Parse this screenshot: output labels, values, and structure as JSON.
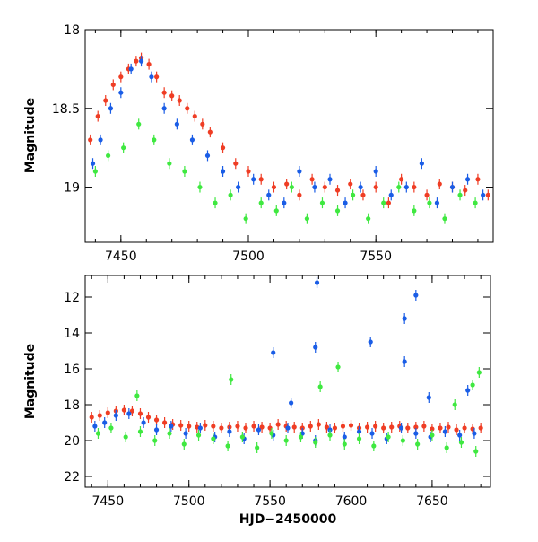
{
  "chart_data": [
    {
      "type": "scatter",
      "panel": "top",
      "xlabel": "",
      "ylabel": "Magnitude",
      "xlim": [
        7436,
        7596
      ],
      "ylim": [
        19.35,
        18.0
      ],
      "y_inverted": true,
      "grid": false,
      "legend": "none",
      "xticks": [
        7450,
        7500,
        7550
      ],
      "yticks": [
        18,
        18.5,
        19
      ],
      "ytick_labels": [
        "18",
        "18.5",
        "19"
      ],
      "series": [
        {
          "color": "#ef3d24",
          "x": [
            7438,
            7441,
            7444,
            7447,
            7450,
            7453,
            7456,
            7458,
            7461,
            7464,
            7467,
            7470,
            7473,
            7476,
            7479,
            7482,
            7485,
            7490,
            7495,
            7500,
            7505,
            7510,
            7515,
            7520,
            7525,
            7530,
            7535,
            7540,
            7545,
            7550,
            7555,
            7560,
            7565,
            7570,
            7575,
            7580,
            7585,
            7590,
            7594
          ],
          "y": [
            18.7,
            18.55,
            18.45,
            18.35,
            18.3,
            18.25,
            18.2,
            18.18,
            18.22,
            18.3,
            18.4,
            18.42,
            18.45,
            18.5,
            18.55,
            18.6,
            18.65,
            18.75,
            18.85,
            18.9,
            18.95,
            19.0,
            18.98,
            19.05,
            18.95,
            19.0,
            19.02,
            18.98,
            19.05,
            19.0,
            19.1,
            18.95,
            19.0,
            19.05,
            18.98,
            19.0,
            19.02,
            18.95,
            19.05
          ]
        },
        {
          "color": "#1a5de6",
          "x": [
            7439,
            7442,
            7446,
            7450,
            7454,
            7458,
            7462,
            7467,
            7472,
            7478,
            7484,
            7490,
            7496,
            7502,
            7508,
            7514,
            7520,
            7526,
            7532,
            7538,
            7544,
            7550,
            7556,
            7562,
            7568,
            7574,
            7580,
            7586,
            7592
          ],
          "y": [
            18.85,
            18.7,
            18.5,
            18.4,
            18.25,
            18.2,
            18.3,
            18.5,
            18.6,
            18.7,
            18.8,
            18.9,
            19.0,
            18.95,
            19.05,
            19.1,
            18.9,
            19.0,
            18.95,
            19.1,
            19.0,
            18.9,
            19.05,
            19.0,
            18.85,
            19.1,
            19.0,
            18.95,
            19.05
          ]
        },
        {
          "color": "#3fe840",
          "x": [
            7440,
            7445,
            7451,
            7457,
            7463,
            7469,
            7475,
            7481,
            7487,
            7493,
            7499,
            7505,
            7511,
            7517,
            7523,
            7529,
            7535,
            7541,
            7547,
            7553,
            7559,
            7565,
            7571,
            7577,
            7583,
            7589
          ],
          "y": [
            18.9,
            18.8,
            18.75,
            18.6,
            18.7,
            18.85,
            18.9,
            19.0,
            19.1,
            19.05,
            19.2,
            19.1,
            19.15,
            19.0,
            19.2,
            19.1,
            19.15,
            19.05,
            19.2,
            19.1,
            19.0,
            19.15,
            19.1,
            19.2,
            19.05,
            19.1
          ]
        }
      ]
    },
    {
      "type": "scatter",
      "panel": "bottom",
      "xlabel": "HJD−2450000",
      "ylabel": "Magnitude",
      "xlim": [
        7436,
        7686
      ],
      "ylim": [
        22.6,
        10.8
      ],
      "y_inverted": true,
      "grid": false,
      "legend": "none",
      "xticks": [
        7450,
        7500,
        7550,
        7600,
        7650
      ],
      "yticks": [
        12,
        14,
        16,
        18,
        20,
        22
      ],
      "ytick_labels": [
        "12",
        "14",
        "16",
        "18",
        "20",
        "22"
      ],
      "series": [
        {
          "color": "#ef3d24",
          "x": [
            7440,
            7445,
            7450,
            7455,
            7460,
            7465,
            7470,
            7475,
            7480,
            7485,
            7490,
            7495,
            7500,
            7505,
            7510,
            7515,
            7520,
            7525,
            7530,
            7535,
            7540,
            7545,
            7550,
            7555,
            7560,
            7565,
            7570,
            7575,
            7580,
            7585,
            7590,
            7595,
            7600,
            7605,
            7610,
            7615,
            7620,
            7625,
            7630,
            7635,
            7640,
            7645,
            7650,
            7655,
            7660,
            7665,
            7670,
            7675,
            7680
          ],
          "y": [
            18.7,
            18.6,
            18.45,
            18.35,
            18.3,
            18.35,
            18.5,
            18.7,
            18.85,
            19.0,
            19.1,
            19.15,
            19.2,
            19.25,
            19.15,
            19.2,
            19.3,
            19.25,
            19.2,
            19.3,
            19.2,
            19.25,
            19.3,
            19.1,
            19.2,
            19.25,
            19.3,
            19.2,
            19.1,
            19.25,
            19.3,
            19.2,
            19.15,
            19.3,
            19.25,
            19.2,
            19.3,
            19.25,
            19.2,
            19.3,
            19.25,
            19.2,
            19.35,
            19.3,
            19.25,
            19.4,
            19.3,
            19.35,
            19.3
          ]
        },
        {
          "color": "#1a5de6",
          "x": [
            7442,
            7448,
            7455,
            7463,
            7472,
            7480,
            7489,
            7498,
            7507,
            7516,
            7525,
            7534,
            7543,
            7552,
            7561,
            7570,
            7578,
            7587,
            7596,
            7605,
            7613,
            7622,
            7631,
            7640,
            7649,
            7658,
            7667,
            7676,
            7579,
            7578,
            7563,
            7612,
            7633,
            7633,
            7640,
            7552,
            7648,
            7672
          ],
          "y": [
            19.2,
            19.0,
            18.6,
            18.5,
            19.0,
            19.4,
            19.2,
            19.6,
            19.3,
            19.8,
            19.5,
            19.9,
            19.4,
            19.7,
            19.3,
            19.6,
            20.0,
            19.4,
            19.8,
            19.5,
            19.6,
            19.9,
            19.3,
            19.6,
            19.8,
            19.5,
            19.7,
            19.6,
            11.2,
            14.8,
            17.9,
            14.5,
            13.2,
            15.6,
            11.9,
            15.1,
            17.6,
            17.2
          ]
        },
        {
          "color": "#3fe840",
          "x": [
            7444,
            7452,
            7461,
            7470,
            7479,
            7488,
            7497,
            7506,
            7515,
            7524,
            7533,
            7542,
            7551,
            7560,
            7569,
            7578,
            7587,
            7596,
            7605,
            7614,
            7623,
            7632,
            7641,
            7650,
            7659,
            7668,
            7677,
            7468,
            7526,
            7581,
            7592,
            7664,
            7675,
            7679
          ],
          "y": [
            19.6,
            19.3,
            19.8,
            19.5,
            20.0,
            19.6,
            20.2,
            19.7,
            19.9,
            20.3,
            19.8,
            20.4,
            19.6,
            20.0,
            19.8,
            20.1,
            19.7,
            20.2,
            19.9,
            20.3,
            19.8,
            20.0,
            20.2,
            19.7,
            20.4,
            20.1,
            20.6,
            17.5,
            16.6,
            17.0,
            15.9,
            18.0,
            16.9,
            16.2
          ]
        }
      ]
    }
  ]
}
